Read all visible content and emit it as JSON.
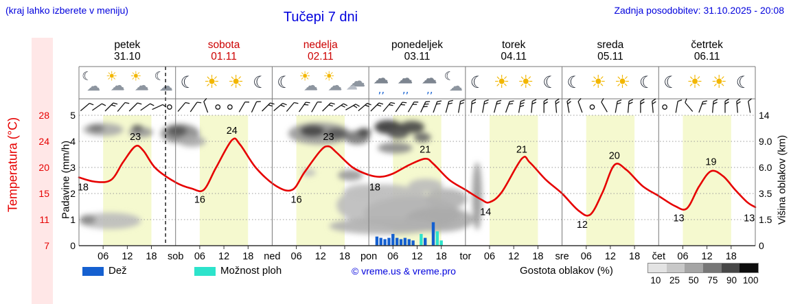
{
  "header": {
    "hint": "(kraj lahko izberete v meniju)",
    "title": "Tučepi 7 dni",
    "updated": "Zadnja posodobitev: 31.10.2025 - 20:08"
  },
  "colors": {
    "accent_blue": "#0000dd",
    "weekend_red": "#cc0000",
    "temperature": "#e60000",
    "rain": "#1560d0",
    "shower": "#2de3cb",
    "day_band": "#f5f9cf",
    "temp_strip": "#ffe7e7",
    "sun": "#f2b600",
    "cloud_icon": "#8e96a0",
    "moon": "#1c2330"
  },
  "days": [
    {
      "name": "petek",
      "date": "31.10",
      "weekend": false
    },
    {
      "name": "sobota",
      "date": "01.11",
      "weekend": true
    },
    {
      "name": "nedelja",
      "date": "02.11",
      "weekend": true
    },
    {
      "name": "ponedeljek",
      "date": "03.11",
      "weekend": false
    },
    {
      "name": "torek",
      "date": "04.11",
      "weekend": false
    },
    {
      "name": "sreda",
      "date": "05.11",
      "weekend": false
    },
    {
      "name": "četrtek",
      "date": "06.11",
      "weekend": false
    }
  ],
  "x_axis": {
    "hour_labels": [
      "06",
      "12",
      "18"
    ],
    "day_abbrs": [
      "sob",
      "ned",
      "pon",
      "tor",
      "sre",
      "čet"
    ]
  },
  "axes": {
    "temperature": {
      "label": "Temperatura (°C)",
      "ticks": [
        "28",
        "24",
        "20",
        "15",
        "11",
        "7"
      ]
    },
    "precipitation": {
      "label": "Padavine (mm/h)",
      "ticks": [
        "5",
        "4",
        "3",
        "2",
        "1",
        "0"
      ]
    },
    "cloud_height": {
      "label": "Višina oblakov (km)",
      "ticks": [
        "14",
        "9.0",
        "6.0",
        "3.5",
        "1.5",
        "0"
      ]
    }
  },
  "icons": [
    "moon-cloud",
    "sun-cloud",
    "sun-cloud",
    "moon-cloud",
    "moon",
    "sun",
    "sun",
    "moon",
    "moon",
    "sun-cloud",
    "sun-cloud",
    "cloud",
    "rain",
    "rain",
    "rain",
    "moon-cloud",
    "moon",
    "sun",
    "sun",
    "moon",
    "moon",
    "sun",
    "sun",
    "moon",
    "moon",
    "sun",
    "sun",
    "moon"
  ],
  "wind": [
    [
      50,
      1
    ],
    [
      55,
      1
    ],
    [
      45,
      2
    ],
    [
      40,
      1
    ],
    [
      45,
      1
    ],
    [
      55,
      1
    ],
    [
      65,
      1
    ],
    [
      0,
      0
    ],
    [
      40,
      1
    ],
    [
      35,
      1
    ],
    [
      -20,
      1
    ],
    [
      0,
      0
    ],
    [
      0,
      0
    ],
    [
      30,
      1
    ],
    [
      25,
      1
    ],
    [
      45,
      2
    ],
    [
      50,
      2
    ],
    [
      40,
      1
    ],
    [
      35,
      2
    ],
    [
      30,
      1
    ],
    [
      45,
      2
    ],
    [
      55,
      2
    ],
    [
      60,
      2
    ],
    [
      50,
      2
    ],
    [
      45,
      2
    ],
    [
      40,
      2
    ],
    [
      35,
      2
    ],
    [
      30,
      2
    ],
    [
      25,
      3
    ],
    [
      20,
      2
    ],
    [
      15,
      2
    ],
    [
      10,
      2
    ],
    [
      5,
      2
    ],
    [
      10,
      2
    ],
    [
      15,
      2
    ],
    [
      20,
      2
    ],
    [
      10,
      3
    ],
    [
      5,
      2
    ],
    [
      0,
      2
    ],
    [
      -5,
      2
    ],
    [
      -10,
      2
    ],
    [
      -20,
      1
    ],
    [
      0,
      0
    ],
    [
      -30,
      1
    ],
    [
      10,
      2
    ],
    [
      5,
      2
    ],
    [
      0,
      2
    ],
    [
      -5,
      2
    ],
    [
      0,
      0
    ],
    [
      10,
      1
    ],
    [
      -40,
      1
    ],
    [
      20,
      2
    ],
    [
      5,
      2
    ],
    [
      0,
      2
    ],
    [
      -5,
      2
    ],
    [
      -10,
      1
    ]
  ],
  "now_line_hour": 21.5,
  "chart_data": [
    {
      "type": "line",
      "name": "temperature",
      "unit": "°C",
      "color": "#e60000",
      "x_range_hours": [
        0,
        168
      ],
      "y_range": [
        7,
        28
      ],
      "axis_label": "Temperatura (°C)",
      "axis_ticks": [
        28,
        24,
        20,
        15,
        11,
        7
      ],
      "points": [
        [
          0,
          18
        ],
        [
          4,
          17.3
        ],
        [
          8,
          17.6
        ],
        [
          11,
          20.5
        ],
        [
          14,
          23
        ],
        [
          16,
          22.3
        ],
        [
          19,
          19.5
        ],
        [
          24,
          17.2
        ],
        [
          28,
          16.2
        ],
        [
          31,
          16
        ],
        [
          34,
          19.5
        ],
        [
          38,
          24
        ],
        [
          40,
          23.3
        ],
        [
          44,
          19.5
        ],
        [
          49,
          16.6
        ],
        [
          53,
          16
        ],
        [
          56,
          18.8
        ],
        [
          60,
          22.3
        ],
        [
          62,
          23
        ],
        [
          64,
          22
        ],
        [
          68,
          19.6
        ],
        [
          72,
          18.4
        ],
        [
          75,
          18.1
        ],
        [
          78,
          18.6
        ],
        [
          82,
          20
        ],
        [
          86,
          21
        ],
        [
          88,
          20.2
        ],
        [
          92,
          17.6
        ],
        [
          96,
          16
        ],
        [
          100,
          14.4
        ],
        [
          102,
          14
        ],
        [
          105,
          15.6
        ],
        [
          110,
          21
        ],
        [
          112,
          20.4
        ],
        [
          116,
          17.6
        ],
        [
          120,
          15.4
        ],
        [
          124,
          12.7
        ],
        [
          127,
          12
        ],
        [
          130,
          15.5
        ],
        [
          133,
          20
        ],
        [
          136,
          19.2
        ],
        [
          140,
          16.6
        ],
        [
          144,
          15
        ],
        [
          148,
          13.4
        ],
        [
          151,
          13
        ],
        [
          154,
          16.5
        ],
        [
          157,
          19
        ],
        [
          160,
          18.2
        ],
        [
          163,
          16
        ],
        [
          166,
          14
        ],
        [
          168,
          13.2
        ]
      ],
      "labels": [
        {
          "t": 1,
          "v": 18,
          "pos": "below"
        },
        {
          "t": 14,
          "v": 23,
          "pos": "above"
        },
        {
          "t": 30,
          "v": 16,
          "pos": "below"
        },
        {
          "t": 38,
          "v": 24,
          "pos": "above"
        },
        {
          "t": 54,
          "v": 16,
          "pos": "below"
        },
        {
          "t": 62,
          "v": 23,
          "pos": "above"
        },
        {
          "t": 73.5,
          "v": 18,
          "pos": "below"
        },
        {
          "t": 86,
          "v": 21,
          "pos": "above"
        },
        {
          "t": 101,
          "v": 14,
          "pos": "below"
        },
        {
          "t": 110,
          "v": 21,
          "pos": "above"
        },
        {
          "t": 125,
          "v": 12,
          "pos": "below"
        },
        {
          "t": 133,
          "v": 20,
          "pos": "above"
        },
        {
          "t": 149,
          "v": 13,
          "pos": "below"
        },
        {
          "t": 157,
          "v": 19,
          "pos": "above"
        },
        {
          "t": 166.5,
          "v": 13,
          "pos": "below"
        }
      ]
    },
    {
      "type": "bar",
      "name": "precipitation",
      "unit": "mm/h",
      "y_range": [
        0,
        5
      ],
      "axis_label": "Padavine (mm/h)",
      "axis_ticks": [
        5,
        4,
        3,
        2,
        1,
        0
      ],
      "colors": {
        "rain": "#1560d0",
        "shower": "#2de3cb"
      },
      "bars": [
        [
          74,
          0.35,
          "rain"
        ],
        [
          75,
          0.3,
          "rain"
        ],
        [
          76,
          0.25,
          "rain"
        ],
        [
          77,
          0.3,
          "rain"
        ],
        [
          78,
          0.45,
          "rain"
        ],
        [
          79,
          0.3,
          "rain"
        ],
        [
          80,
          0.25,
          "rain"
        ],
        [
          81,
          0.3,
          "rain"
        ],
        [
          82,
          0.25,
          "rain"
        ],
        [
          83,
          0.2,
          "rain"
        ],
        [
          85,
          0.45,
          "shower"
        ],
        [
          86,
          0.3,
          "rain"
        ],
        [
          88,
          0.9,
          "rain"
        ],
        [
          89,
          0.55,
          "shower"
        ],
        [
          90,
          0.2,
          "shower"
        ]
      ]
    },
    {
      "type": "heatmap",
      "name": "cloud-cover",
      "axis_label": "Višina oblakov (km)",
      "axis_ticks": [
        "14",
        "9.0",
        "6.0",
        "3.5",
        "1.5",
        "0"
      ],
      "density_legend": {
        "label": "Gostota oblakov (%)",
        "steps": [
          10,
          25,
          50,
          75,
          90,
          100
        ]
      },
      "blobs": [
        [
          6,
          0.89,
          5,
          0.05,
          "#aaaaaa"
        ],
        [
          4.3,
          0.9,
          2,
          0.03,
          "#777777"
        ],
        [
          15.4,
          0.87,
          3,
          0.04,
          "#999999"
        ],
        [
          14.5,
          0.9,
          1.4,
          0.026,
          "#555555"
        ],
        [
          7.7,
          0.19,
          7.7,
          0.063,
          "#bbbbbb"
        ],
        [
          2.2,
          0.2,
          2,
          0.037,
          "#888888"
        ],
        [
          25.1,
          0.86,
          4.8,
          0.074,
          "#888888"
        ],
        [
          24.4,
          0.88,
          2.4,
          0.042,
          "#555555"
        ],
        [
          28.1,
          0.8,
          3.4,
          0.042,
          "#aaaaaa"
        ],
        [
          59.7,
          0.86,
          7.7,
          0.084,
          "#999999"
        ],
        [
          58,
          0.88,
          3.1,
          0.047,
          "#444444"
        ],
        [
          64,
          0.86,
          2.6,
          0.042,
          "#555555"
        ],
        [
          69.1,
          0.83,
          3.1,
          0.053,
          "#777777"
        ],
        [
          70.8,
          0.87,
          1.7,
          0.032,
          "#444444"
        ],
        [
          67.4,
          0.54,
          3.1,
          0.042,
          "#999999"
        ],
        [
          57.1,
          0.56,
          1.7,
          0.026,
          "#bbbbbb"
        ],
        [
          76.8,
          0.91,
          3.4,
          0.053,
          "#333333"
        ],
        [
          79.3,
          0.86,
          2.6,
          0.042,
          "#555555"
        ],
        [
          82.7,
          0.91,
          3.1,
          0.047,
          "#444444"
        ],
        [
          85.3,
          0.83,
          2.1,
          0.037,
          "#666666"
        ],
        [
          78.5,
          0.75,
          4.3,
          0.042,
          "#888888"
        ],
        [
          75.9,
          0.31,
          11.9,
          0.16,
          "#bbbbbb"
        ],
        [
          82.7,
          0.25,
          11.9,
          0.13,
          "#b5b5b5"
        ],
        [
          89.6,
          0.2,
          8.5,
          0.095,
          "#aaaaaa"
        ],
        [
          75.9,
          0.15,
          13.7,
          0.063,
          "#b0b0b0"
        ],
        [
          70.8,
          0.41,
          5.1,
          0.063,
          "#c0c0c0"
        ],
        [
          86.1,
          0.46,
          4.3,
          0.053,
          "#bbbbbb"
        ],
        [
          91.3,
          0.36,
          5.1,
          0.079,
          "#b0b0b0"
        ],
        [
          98.9,
          0.38,
          1.2,
          0.26,
          "#999999"
        ]
      ]
    }
  ],
  "legend": {
    "rain": "Dež",
    "shower": "Možnost ploh",
    "copyright": "© vreme.us & vreme.pro",
    "cloud_density_label": "Gostota oblakov (%)",
    "density_steps": [
      "10",
      "25",
      "50",
      "75",
      "90",
      "100"
    ],
    "density_grays": [
      "#e3e3e3",
      "#c8c8c8",
      "#a5a5a5",
      "#777777",
      "#474747",
      "#0d0d0d"
    ]
  }
}
